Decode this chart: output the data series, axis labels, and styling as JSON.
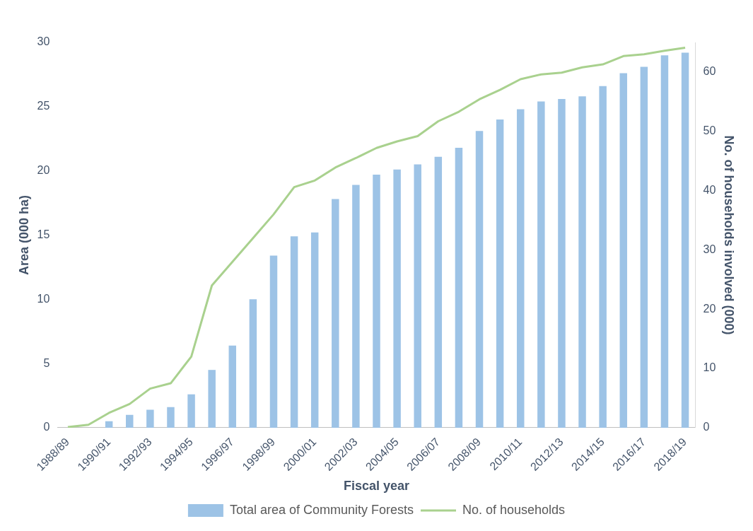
{
  "chart_data": {
    "type": "bar",
    "xlabel": "Fiscal year",
    "ylabel": "Area (000 ha)",
    "y2label": "No. of households involved (000)",
    "categories": [
      "1988/89",
      null,
      "1990/91",
      null,
      "1992/93",
      null,
      "1994/95",
      null,
      "1996/97",
      null,
      "1998/99",
      null,
      "2000/01",
      null,
      "2002/03",
      null,
      "2004/05",
      null,
      "2006/07",
      null,
      "2008/09",
      null,
      "2010/11",
      null,
      "2012/13",
      null,
      "2014/15",
      null,
      "2016/17",
      null,
      "2018/19"
    ],
    "series": [
      {
        "name": "Total area of Community Forests",
        "color": "#9dc3e6",
        "values": [
          0,
          0,
          0.5,
          1.0,
          1.4,
          1.6,
          2.6,
          4.5,
          6.4,
          10.0,
          13.4,
          14.9,
          15.2,
          17.8,
          18.9,
          19.7,
          20.1,
          20.5,
          21.1,
          21.8,
          23.1,
          24.0,
          24.8,
          25.4,
          25.6,
          25.8,
          26.6,
          27.6,
          28.1,
          29.0,
          29.2
        ]
      },
      {
        "name": "No. of households",
        "type": "line",
        "axis": "y2",
        "color": "#a9d18e",
        "values": [
          0.1,
          0.5,
          2.5,
          4,
          6.6,
          7.5,
          12,
          24,
          28,
          32,
          36,
          40.6,
          41.7,
          43.9,
          45.5,
          47.2,
          48.3,
          49.2,
          51.7,
          53.3,
          55.4,
          57,
          58.8,
          59.6,
          59.9,
          60.8,
          61.3,
          62.7,
          63,
          63.6,
          64.1
        ]
      }
    ],
    "ylim": [
      0,
      30
    ],
    "yticks": [
      0,
      5,
      10,
      15,
      20,
      25,
      30
    ],
    "y2lim": [
      0,
      65
    ],
    "y2ticks": [
      0,
      10,
      20,
      30,
      40,
      50,
      60
    ],
    "legend": "bottom",
    "marker": "none",
    "line_style": "solid"
  }
}
